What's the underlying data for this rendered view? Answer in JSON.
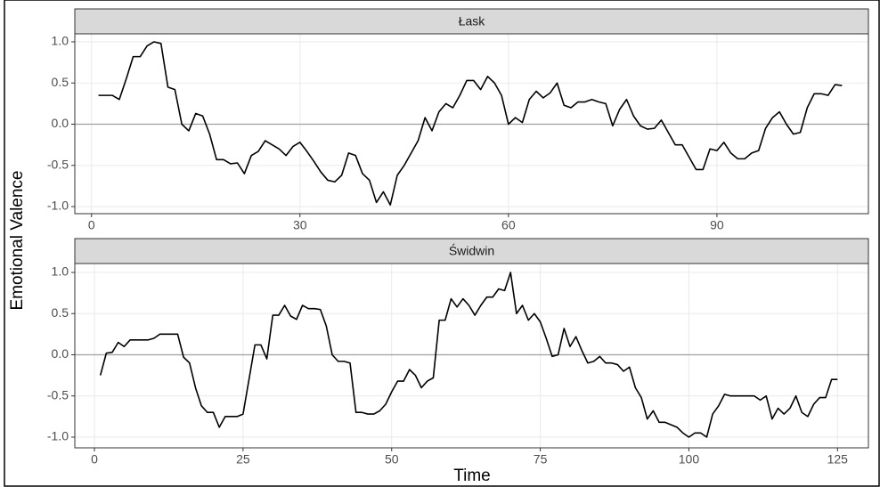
{
  "y_label": "Emotional Valence",
  "x_label": "Time",
  "chart_data": [
    {
      "type": "line",
      "title": "Łask",
      "color": "#000000",
      "reference_line": 0,
      "grid": true,
      "xlim": [
        -2.4,
        111.8
      ],
      "xticks": [
        0,
        30,
        60,
        90
      ],
      "ylim": [
        -1.086,
        1.097
      ],
      "yticks": [
        {
          "value": -1,
          "label": "-1.0"
        },
        -0.5,
        {
          "value": 0,
          "label": "0.0"
        },
        0.5,
        {
          "value": 1,
          "label": "1.0"
        }
      ],
      "x": [
        1,
        2,
        3,
        4,
        5,
        6,
        7,
        8,
        9,
        10,
        11,
        12,
        13,
        14,
        15,
        16,
        17,
        18,
        19,
        20,
        21,
        22,
        23,
        24,
        25,
        26,
        27,
        28,
        29,
        30,
        31,
        32,
        33,
        34,
        35,
        36,
        37,
        38,
        39,
        40,
        41,
        42,
        43,
        44,
        45,
        46,
        47,
        48,
        49,
        50,
        51,
        52,
        53,
        54,
        55,
        56,
        57,
        58,
        59,
        60,
        61,
        62,
        63,
        64,
        65,
        66,
        67,
        68,
        69,
        70,
        71,
        72,
        73,
        74,
        75,
        76,
        77,
        78,
        79,
        80,
        81,
        82,
        83,
        84,
        85,
        86,
        87,
        88,
        89,
        90,
        91,
        92,
        93,
        94,
        95,
        96,
        97,
        98,
        99,
        100,
        101,
        102,
        103,
        104,
        105,
        106,
        107,
        108
      ],
      "values": [
        0.35,
        0.35,
        0.35,
        0.3,
        0.55,
        0.82,
        0.82,
        0.95,
        1.0,
        0.98,
        0.45,
        0.42,
        0.0,
        -0.08,
        0.13,
        0.1,
        -0.12,
        -0.43,
        -0.43,
        -0.48,
        -0.47,
        -0.6,
        -0.38,
        -0.33,
        -0.2,
        -0.25,
        -0.3,
        -0.38,
        -0.27,
        -0.22,
        -0.33,
        -0.45,
        -0.58,
        -0.68,
        -0.7,
        -0.62,
        -0.35,
        -0.38,
        -0.6,
        -0.68,
        -0.95,
        -0.82,
        -0.98,
        -0.62,
        -0.5,
        -0.35,
        -0.2,
        0.08,
        -0.08,
        0.15,
        0.25,
        0.2,
        0.35,
        0.53,
        0.53,
        0.42,
        0.58,
        0.5,
        0.35,
        0.0,
        0.08,
        0.02,
        0.3,
        0.4,
        0.32,
        0.38,
        0.5,
        0.23,
        0.2,
        0.27,
        0.27,
        0.3,
        0.27,
        0.25,
        -0.02,
        0.18,
        0.3,
        0.1,
        -0.02,
        -0.06,
        -0.05,
        0.05,
        -0.1,
        -0.25,
        -0.25,
        -0.4,
        -0.55,
        -0.55,
        -0.3,
        -0.32,
        -0.22,
        -0.35,
        -0.42,
        -0.42,
        -0.35,
        -0.32,
        -0.05,
        0.08,
        0.15,
        0.0,
        -0.12,
        -0.1,
        0.2,
        0.37,
        0.37,
        0.35,
        0.48,
        0.47
      ]
    },
    {
      "type": "line",
      "title": "Świdwin",
      "color": "#000000",
      "reference_line": 0,
      "grid": true,
      "xlim": [
        -3.3,
        130.2
      ],
      "xticks": [
        0,
        25,
        50,
        75,
        100,
        125
      ],
      "ylim": [
        -1.13,
        1.108
      ],
      "yticks": [
        {
          "value": -1,
          "label": "-1.0"
        },
        -0.5,
        {
          "value": 0,
          "label": "0.0"
        },
        0.5,
        {
          "value": 1,
          "label": "1.0"
        }
      ],
      "x": [
        1,
        2,
        3,
        4,
        5,
        6,
        7,
        8,
        9,
        10,
        11,
        12,
        13,
        14,
        15,
        16,
        17,
        18,
        19,
        20,
        21,
        22,
        23,
        24,
        25,
        26,
        27,
        28,
        29,
        30,
        31,
        32,
        33,
        34,
        35,
        36,
        37,
        38,
        39,
        40,
        41,
        42,
        43,
        44,
        45,
        46,
        47,
        48,
        49,
        50,
        51,
        52,
        53,
        54,
        55,
        56,
        57,
        58,
        59,
        60,
        61,
        62,
        63,
        64,
        65,
        66,
        67,
        68,
        69,
        70,
        71,
        72,
        73,
        74,
        75,
        76,
        77,
        78,
        79,
        80,
        81,
        82,
        83,
        84,
        85,
        86,
        87,
        88,
        89,
        90,
        91,
        92,
        93,
        94,
        95,
        96,
        97,
        98,
        99,
        100,
        101,
        102,
        103,
        104,
        105,
        106,
        107,
        108,
        109,
        110,
        111,
        112,
        113,
        114,
        115,
        116,
        117,
        118,
        119,
        120,
        121,
        122,
        123,
        124,
        125
      ],
      "values": [
        -0.25,
        0.02,
        0.03,
        0.15,
        0.1,
        0.18,
        0.18,
        0.18,
        0.18,
        0.2,
        0.25,
        0.25,
        0.25,
        0.25,
        -0.03,
        -0.1,
        -0.4,
        -0.62,
        -0.7,
        -0.7,
        -0.88,
        -0.75,
        -0.75,
        -0.75,
        -0.72,
        -0.3,
        0.12,
        0.12,
        -0.05,
        0.48,
        0.48,
        0.6,
        0.47,
        0.43,
        0.6,
        0.56,
        0.56,
        0.55,
        0.35,
        0.0,
        -0.08,
        -0.08,
        -0.1,
        -0.7,
        -0.7,
        -0.72,
        -0.72,
        -0.68,
        -0.6,
        -0.45,
        -0.32,
        -0.32,
        -0.18,
        -0.25,
        -0.4,
        -0.32,
        -0.28,
        0.42,
        0.42,
        0.68,
        0.58,
        0.68,
        0.6,
        0.48,
        0.6,
        0.7,
        0.7,
        0.8,
        0.78,
        1.0,
        0.5,
        0.6,
        0.42,
        0.5,
        0.4,
        0.2,
        -0.02,
        0.0,
        0.32,
        0.1,
        0.22,
        0.05,
        -0.1,
        -0.08,
        -0.02,
        -0.1,
        -0.1,
        -0.12,
        -0.2,
        -0.15,
        -0.4,
        -0.52,
        -0.78,
        -0.68,
        -0.82,
        -0.82,
        -0.85,
        -0.88,
        -0.95,
        -1.0,
        -0.95,
        -0.95,
        -1.0,
        -0.72,
        -0.62,
        -0.48,
        -0.5,
        -0.5,
        -0.5,
        -0.5,
        -0.5,
        -0.55,
        -0.5,
        -0.78,
        -0.65,
        -0.72,
        -0.65,
        -0.5,
        -0.7,
        -0.75,
        -0.6,
        -0.52,
        -0.52,
        -0.3,
        -0.3
      ]
    }
  ]
}
